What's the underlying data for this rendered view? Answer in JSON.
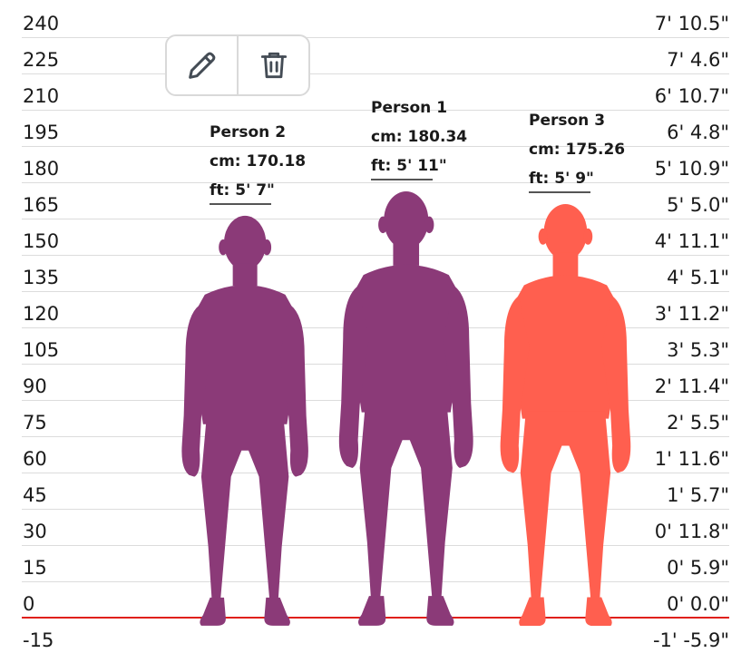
{
  "scale": {
    "left_labels": [
      "240",
      "225",
      "210",
      "195",
      "180",
      "165",
      "150",
      "135",
      "120",
      "105",
      "90",
      "75",
      "60",
      "45",
      "30",
      "15",
      "0",
      "-15"
    ],
    "right_labels": [
      "7' 10.5\"",
      "7' 4.6\"",
      "6' 10.7\"",
      "6' 4.8\"",
      "5' 10.9\"",
      "5' 5.0\"",
      "4' 11.1\"",
      "4' 5.1\"",
      "3' 11.2\"",
      "3' 5.3\"",
      "2' 11.4\"",
      "2' 5.5\"",
      "1' 11.6\"",
      "1' 5.7\"",
      "0' 11.8\"",
      "0' 5.9\"",
      "0' 0.0\"",
      "-1' -5.9\""
    ],
    "ground_color": "#e0201b"
  },
  "toolbar": {
    "edit_icon": "pencil-icon",
    "delete_icon": "trash-icon"
  },
  "people": [
    {
      "name": "Person 2",
      "cm": "cm: 170.18",
      "ft": "ft: 5' 7\"",
      "height_cm": 170.18,
      "color": "#8b3a78"
    },
    {
      "name": "Person 1",
      "cm": "cm: 180.34",
      "ft": "ft: 5' 11\"",
      "height_cm": 180.34,
      "color": "#8b3a78"
    },
    {
      "name": "Person 3",
      "cm": "cm: 175.26",
      "ft": "ft: 5' 9\"",
      "height_cm": 175.26,
      "color": "#ff5f4f"
    }
  ]
}
